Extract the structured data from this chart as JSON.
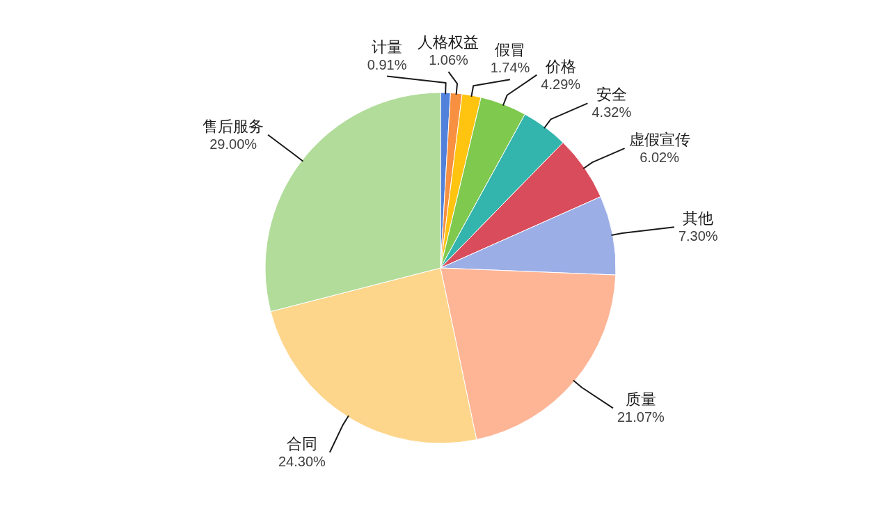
{
  "chart_data": {
    "type": "pie",
    "categories": [
      "计量",
      "人格权益",
      "假冒",
      "价格",
      "安全",
      "虚假宣传",
      "其他",
      "质量",
      "合同",
      "售后服务"
    ],
    "values": [
      0.91,
      1.06,
      1.74,
      4.29,
      4.32,
      6.02,
      7.3,
      21.07,
      24.3,
      29.0
    ],
    "colors": [
      "#5181db",
      "#f79040",
      "#ffc410",
      "#7ec94e",
      "#33b5ad",
      "#d94c5b",
      "#9caee6",
      "#fdb596",
      "#fdd68c",
      "#b1dc9a"
    ],
    "value_labels": [
      "0.91%",
      "1.06%",
      "1.74%",
      "4.29%",
      "4.32%",
      "6.02%",
      "7.30%",
      "21.07%",
      "24.30%",
      "29.00%"
    ]
  }
}
